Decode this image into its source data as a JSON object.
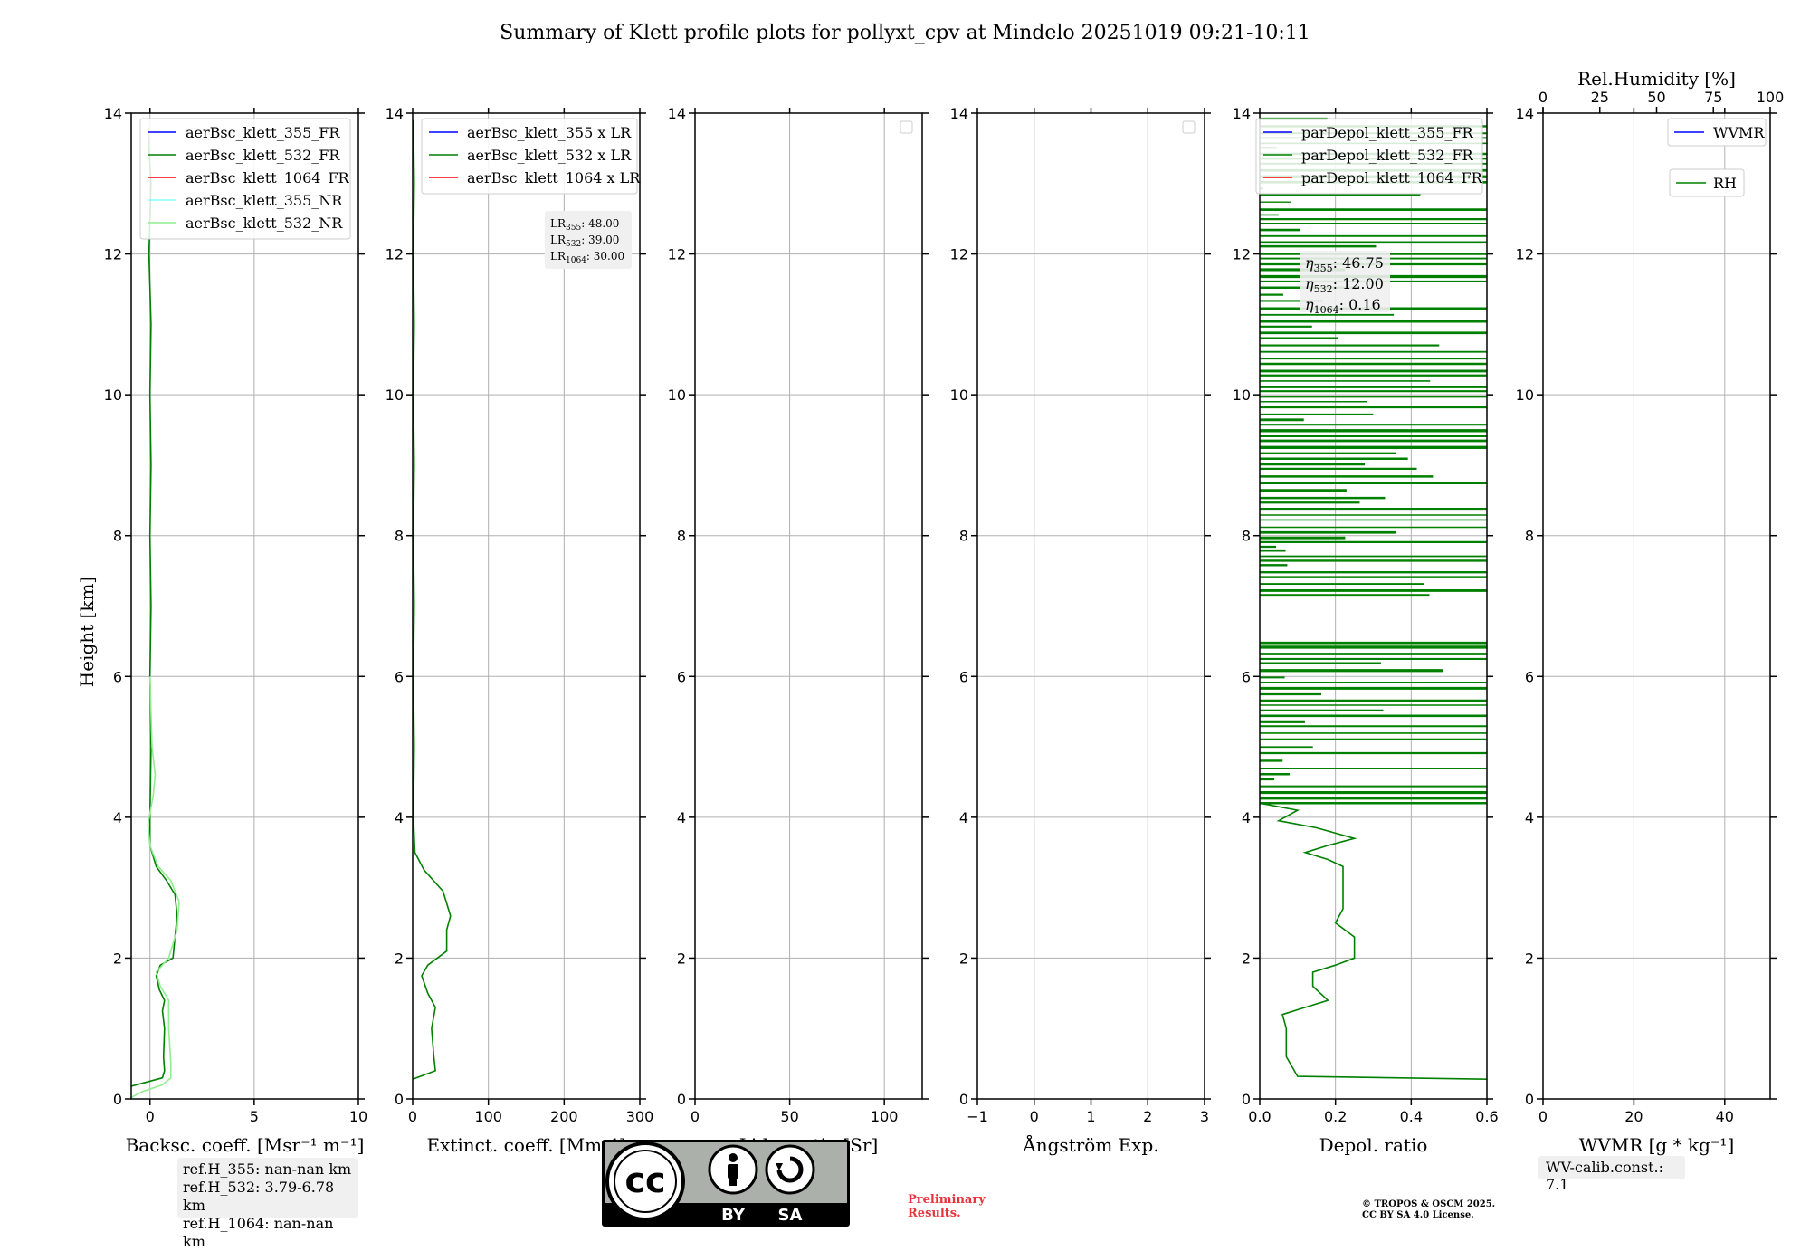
{
  "figure_title": "Summary of Klett profile plots for pollyxt_cpv at Mindelo 20251019 09:21-10:11",
  "ylabel": "Height [km]",
  "y_range": [
    0,
    14
  ],
  "y_ticks": [
    "0",
    "2",
    "4",
    "6",
    "8",
    "10",
    "12",
    "14"
  ],
  "chart_data": [
    {
      "type": "line",
      "id": "bsc",
      "xlabel": "Backsc. coeff. [Msr⁻¹ m⁻¹]",
      "xlim": [
        -0.9,
        10
      ],
      "xticks": [
        0,
        5,
        10
      ],
      "legend": [
        "aerBsc_klett_355_FR",
        "aerBsc_klett_532_FR",
        "aerBsc_klett_1064_FR",
        "aerBsc_klett_355_NR",
        "aerBsc_klett_532_NR"
      ],
      "series": [
        {
          "name": "aerBsc_klett_532_FR",
          "color": "#008000",
          "points": [
            [
              -0.9,
              0.18
            ],
            [
              0.6,
              0.3
            ],
            [
              0.7,
              0.4
            ],
            [
              0.65,
              0.6
            ],
            [
              0.7,
              1.0
            ],
            [
              0.6,
              1.25
            ],
            [
              0.7,
              1.4
            ],
            [
              0.45,
              1.55
            ],
            [
              0.3,
              1.75
            ],
            [
              0.5,
              1.9
            ],
            [
              1.1,
              2.0
            ],
            [
              1.2,
              2.3
            ],
            [
              1.3,
              2.6
            ],
            [
              1.2,
              2.9
            ],
            [
              0.8,
              3.1
            ],
            [
              0.3,
              3.3
            ],
            [
              0.0,
              3.6
            ],
            [
              0.0,
              4.0
            ],
            [
              0.05,
              5.0
            ],
            [
              0.0,
              6.0
            ],
            [
              0.05,
              7.0
            ],
            [
              0.0,
              8.0
            ],
            [
              0.05,
              9.0
            ],
            [
              0.0,
              10.0
            ],
            [
              0.05,
              11.0
            ],
            [
              -0.05,
              12.0
            ],
            [
              0.05,
              13.0
            ],
            [
              -0.1,
              13.8
            ]
          ]
        },
        {
          "name": "aerBsc_klett_532_NR",
          "color": "#90ee90",
          "points": [
            [
              -0.9,
              0.02
            ],
            [
              -0.4,
              0.1
            ],
            [
              0.6,
              0.2
            ],
            [
              1.0,
              0.3
            ],
            [
              1.0,
              0.5
            ],
            [
              0.9,
              1.0
            ],
            [
              0.9,
              1.4
            ],
            [
              0.5,
              1.6
            ],
            [
              0.3,
              1.8
            ],
            [
              0.9,
              2.0
            ],
            [
              1.3,
              2.4
            ],
            [
              1.4,
              2.8
            ],
            [
              1.0,
              3.1
            ],
            [
              0.4,
              3.3
            ],
            [
              0.0,
              3.6
            ],
            [
              -0.1,
              3.9
            ],
            [
              0.15,
              4.3
            ],
            [
              0.25,
              4.6
            ],
            [
              0.1,
              5.0
            ],
            [
              0.0,
              6.0
            ]
          ]
        }
      ]
    },
    {
      "type": "line",
      "id": "ext",
      "xlabel": "Extinct. coeff. [Mm⁻¹]",
      "xlim": [
        0,
        300
      ],
      "xticks": [
        0,
        100,
        200,
        300
      ],
      "legend": [
        "aerBsc_klett_355 x LR",
        "aerBsc_klett_532 x LR",
        "aerBsc_klett_1064 x LR"
      ],
      "lr_annotation": [
        {
          "prefix": "LR",
          "sub": "355",
          "value": ": 48.00"
        },
        {
          "prefix": "LR",
          "sub": "532",
          "value": ": 39.00"
        },
        {
          "prefix": "LR",
          "sub": "1064",
          "value": ": 30.00"
        }
      ],
      "series": [
        {
          "name": "aerBsc_klett_532 x LR",
          "color": "#008000",
          "points": [
            [
              0,
              0.28
            ],
            [
              30,
              0.4
            ],
            [
              28,
              0.6
            ],
            [
              25,
              1.0
            ],
            [
              30,
              1.3
            ],
            [
              20,
              1.5
            ],
            [
              12,
              1.75
            ],
            [
              20,
              1.9
            ],
            [
              45,
              2.1
            ],
            [
              45,
              2.4
            ],
            [
              50,
              2.6
            ],
            [
              40,
              2.95
            ],
            [
              15,
              3.25
            ],
            [
              3,
              3.5
            ],
            [
              1,
              4.0
            ],
            [
              2,
              5.0
            ],
            [
              1,
              6.0
            ],
            [
              2,
              7.0
            ],
            [
              1,
              8.0
            ],
            [
              2,
              9.0
            ],
            [
              1,
              10.0
            ],
            [
              2,
              11.0
            ],
            [
              1,
              12.0
            ],
            [
              2,
              13.0
            ],
            [
              1,
              13.9
            ]
          ]
        }
      ]
    },
    {
      "type": "line",
      "id": "lr",
      "xlabel": "Lidar ratio [Sr]",
      "xlim": [
        0,
        120
      ],
      "xticks": [
        0,
        50,
        100
      ],
      "legend": [],
      "series": []
    },
    {
      "type": "line",
      "id": "ang",
      "xlabel": "Ångström Exp.",
      "xlim": [
        -1,
        3
      ],
      "xticks": [
        -1,
        0,
        1,
        2,
        3
      ],
      "legend": [],
      "series": []
    },
    {
      "type": "line",
      "id": "depol",
      "xlabel": "Depol. ratio",
      "xlim": [
        0,
        0.6
      ],
      "xticks": [
        "0.0",
        "0.2",
        "0.4",
        "0.6"
      ],
      "legend": [
        "parDepol_klett_355_FR",
        "parDepol_klett_532_FR",
        "parDepol_klett_1064_FR"
      ],
      "eta_annotation": [
        {
          "prefix": "η",
          "sub": "355",
          "value": ": 46.75"
        },
        {
          "prefix": "η",
          "sub": "532",
          "value": ": 12.00"
        },
        {
          "prefix": "η",
          "sub": "1064",
          "value": ": 0.16"
        }
      ],
      "series": [
        {
          "name": "parDepol_klett_532_FR",
          "color": "#008000",
          "points": [
            [
              0.6,
              0.28
            ],
            [
              0.1,
              0.32
            ],
            [
              0.07,
              0.6
            ],
            [
              0.07,
              1.0
            ],
            [
              0.06,
              1.2
            ],
            [
              0.12,
              1.3
            ],
            [
              0.18,
              1.4
            ],
            [
              0.14,
              1.6
            ],
            [
              0.14,
              1.8
            ],
            [
              0.2,
              1.9
            ],
            [
              0.25,
              2.0
            ],
            [
              0.25,
              2.3
            ],
            [
              0.2,
              2.5
            ],
            [
              0.22,
              2.7
            ],
            [
              0.22,
              3.0
            ],
            [
              0.22,
              3.3
            ],
            [
              0.18,
              3.4
            ],
            [
              0.12,
              3.5
            ],
            [
              0.18,
              3.6
            ],
            [
              0.25,
              3.7
            ],
            [
              0.15,
              3.85
            ],
            [
              0.05,
              3.95
            ],
            [
              0.1,
              4.1
            ],
            [
              0.0,
              4.2
            ]
          ]
        }
      ]
    },
    {
      "type": "line",
      "id": "wv",
      "xlabel": "WVMR [g * kg⁻¹]",
      "xlim": [
        0,
        50
      ],
      "xticks": [
        0,
        20,
        40
      ],
      "top_xlabel": "Rel.Humidity [%]",
      "top_xlim": [
        0,
        100
      ],
      "top_xticks": [
        0,
        25,
        50,
        75,
        100
      ],
      "legend": [
        "WVMR",
        "RH"
      ],
      "series": []
    }
  ],
  "ref_heights": [
    "ref.H_355: nan-nan km",
    "ref.H_532: 3.79-6.78 km",
    "ref.H_1064: nan-nan km"
  ],
  "wv_calib": "WV-calib.const.: 7.1",
  "license_badge": {
    "by": "BY",
    "sa": "SA",
    "cc": "cc"
  },
  "preliminary": [
    "Preliminary",
    "Results."
  ],
  "copyright": [
    "© TROPOS & OSCM 2025.",
    "CC BY SA 4.0 License."
  ],
  "colors": {
    "blue": "#0000ff",
    "green": "#008000",
    "red": "#ff0000",
    "cyan": "#80ffff",
    "lightgreen": "#90ee90",
    "grid": "#b0b0b0"
  }
}
